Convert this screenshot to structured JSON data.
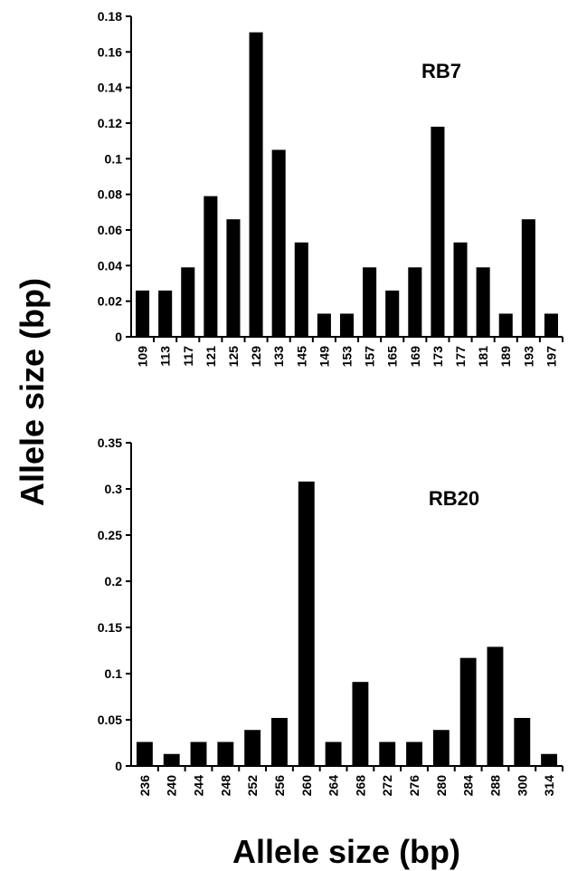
{
  "labels": {
    "shared_ylabel": "Allele size (bp)",
    "shared_xlabel": "Allele size (bp)"
  },
  "chart_data": [
    {
      "type": "bar",
      "title": "RB7",
      "xlabel": "",
      "ylabel": "",
      "ylim": [
        0,
        0.18
      ],
      "yticks": [
        "0",
        "0.02",
        "0.04",
        "0.06",
        "0.08",
        "0.1",
        "0.12",
        "0.14",
        "0.16",
        "0.18"
      ],
      "categories": [
        "109",
        "113",
        "117",
        "121",
        "125",
        "129",
        "133",
        "145",
        "149",
        "153",
        "157",
        "165",
        "169",
        "173",
        "177",
        "181",
        "189",
        "193",
        "197"
      ],
      "values": [
        0.026,
        0.026,
        0.039,
        0.079,
        0.066,
        0.171,
        0.105,
        0.053,
        0.013,
        0.013,
        0.039,
        0.026,
        0.039,
        0.118,
        0.053,
        0.039,
        0.013,
        0.066,
        0.013
      ],
      "grid": false,
      "color": "#000000"
    },
    {
      "type": "bar",
      "title": "RB20",
      "xlabel": "",
      "ylabel": "",
      "ylim": [
        0,
        0.35
      ],
      "yticks": [
        "0",
        "0.05",
        "0.1",
        "0.15",
        "0.2",
        "0.25",
        "0.3",
        "0.35"
      ],
      "categories": [
        "236",
        "240",
        "244",
        "248",
        "252",
        "256",
        "260",
        "264",
        "268",
        "272",
        "276",
        "280",
        "284",
        "288",
        "300",
        "314"
      ],
      "values": [
        0.026,
        0.013,
        0.026,
        0.026,
        0.039,
        0.052,
        0.308,
        0.026,
        0.091,
        0.026,
        0.026,
        0.039,
        0.117,
        0.129,
        0.052,
        0.013
      ],
      "grid": false,
      "color": "#000000"
    }
  ]
}
